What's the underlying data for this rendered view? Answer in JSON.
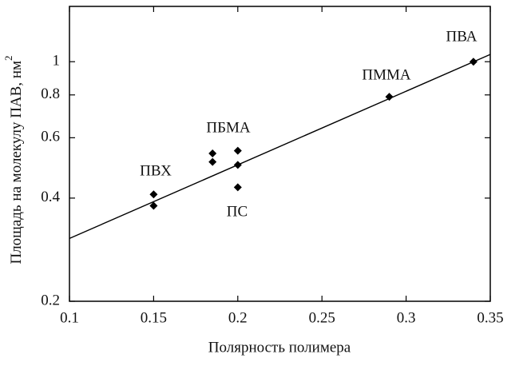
{
  "chart_data": {
    "type": "scatter",
    "x_label": "Полярность полимера",
    "y_label": "Площадь на молекулу ПАВ, нм",
    "y_label_superscript": "2",
    "x": [
      0.15,
      0.15,
      0.185,
      0.185,
      0.2,
      0.2,
      0.2,
      0.29,
      0.34
    ],
    "values": [
      0.41,
      0.38,
      0.54,
      0.51,
      0.55,
      0.5,
      0.43,
      0.79,
      1.0
    ],
    "color": "#000000",
    "fit_line": {
      "x": [
        0.1,
        0.35
      ],
      "values": [
        0.305,
        1.05
      ]
    },
    "annotations": [
      "ПВХ",
      "ПБМА",
      "ПС",
      "ПММА",
      "ПВА"
    ],
    "xlim": [
      0.1,
      0.35
    ],
    "xticks": [
      0.1,
      0.15,
      0.2,
      0.25,
      0.3,
      0.35
    ],
    "ylim": [
      0.2,
      1.45
    ],
    "yticks": [
      0.2,
      0.4,
      0.6,
      0.8,
      1
    ],
    "y_scale": "log",
    "grid": false
  }
}
